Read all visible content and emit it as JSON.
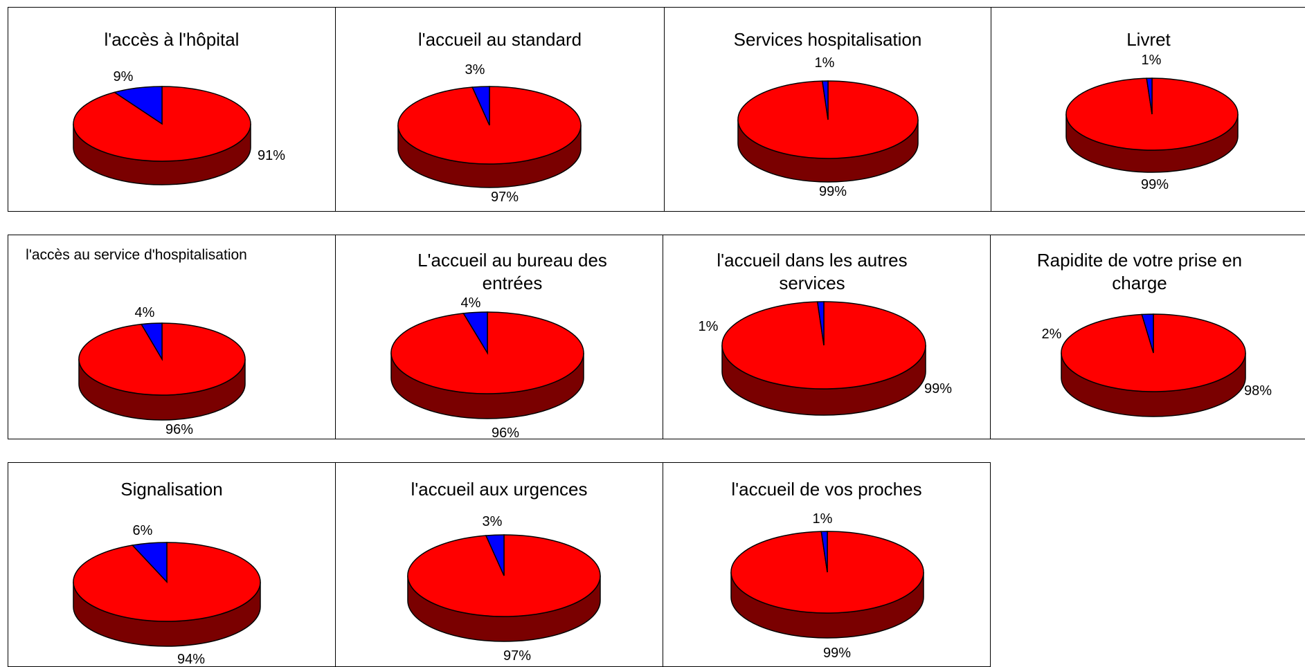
{
  "colors": {
    "satisfied": "#ff0000",
    "satisfied_side": "#7a0000",
    "unsatisfied": "#0000ff",
    "unsatisfied_side": "#000080"
  },
  "chart_data": [
    {
      "type": "pie",
      "title": "l'accès à l'hôpital",
      "values": [
        91,
        9
      ],
      "labels": [
        "91%",
        "9%"
      ]
    },
    {
      "type": "pie",
      "title": "l'accueil au standard",
      "values": [
        97,
        3
      ],
      "labels": [
        "97%",
        "3%"
      ]
    },
    {
      "type": "pie",
      "title": "Services hospitalisation",
      "values": [
        99,
        1
      ],
      "labels": [
        "99%",
        "1%"
      ]
    },
    {
      "type": "pie",
      "title": "Livret",
      "values": [
        99,
        1
      ],
      "labels": [
        "99%",
        "1%"
      ]
    },
    {
      "type": "pie",
      "title": "l'accès au service d'hospitalisation",
      "values": [
        96,
        4
      ],
      "labels": [
        "96%",
        "4%"
      ]
    },
    {
      "type": "pie",
      "title": "L'accueil au bureau des entrées",
      "values": [
        96,
        4
      ],
      "labels": [
        "96%",
        "4%"
      ]
    },
    {
      "type": "pie",
      "title": "l'accueil dans les autres services",
      "values": [
        99,
        1
      ],
      "labels": [
        "99%",
        "1%"
      ]
    },
    {
      "type": "pie",
      "title": "Rapidite de votre prise en charge",
      "values": [
        98,
        2
      ],
      "labels": [
        "98%",
        "2%"
      ]
    },
    {
      "type": "pie",
      "title": "Signalisation",
      "values": [
        94,
        6
      ],
      "labels": [
        "94%",
        "6%"
      ]
    },
    {
      "type": "pie",
      "title": "l'accueil aux urgences",
      "values": [
        97,
        3
      ],
      "labels": [
        "97%",
        "3%"
      ]
    },
    {
      "type": "pie",
      "title": "l'accueil de vos proches",
      "values": [
        99,
        1
      ],
      "labels": [
        "99%",
        "1%"
      ]
    }
  ]
}
